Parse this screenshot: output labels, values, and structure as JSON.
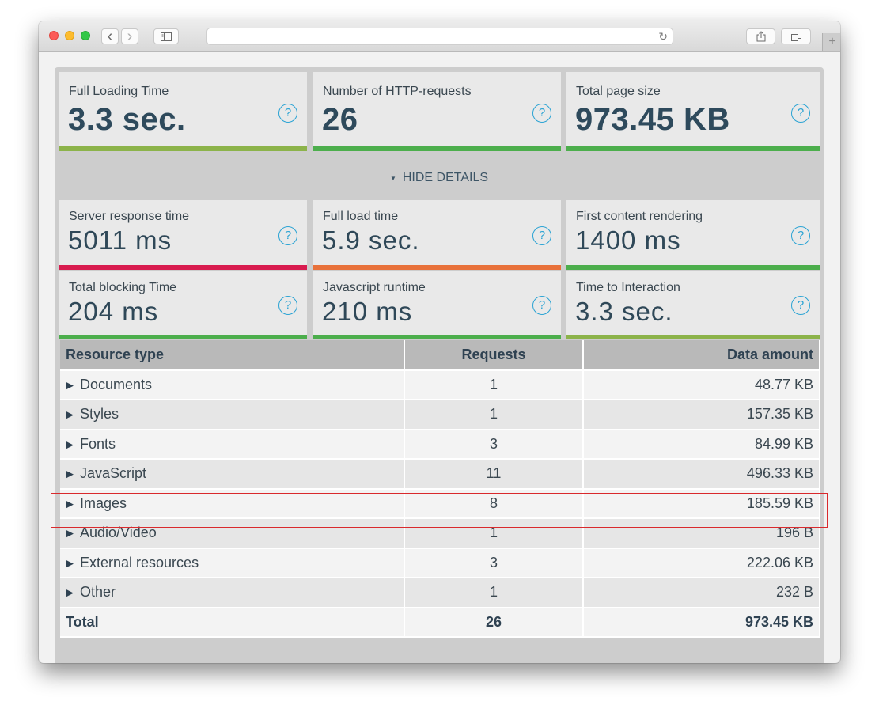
{
  "summary": [
    {
      "label": "Full Loading Time",
      "value": "3.3 sec.",
      "bar_color": "#8cb34a"
    },
    {
      "label": "Number of HTTP-requests",
      "value": "26",
      "bar_color": "#4cae4c"
    },
    {
      "label": "Total page size",
      "value": "973.45 KB",
      "bar_color": "#4cae4c"
    }
  ],
  "help_glyph": "?",
  "toggle": {
    "arrow": "▼",
    "label": "HIDE DETAILS"
  },
  "details": [
    {
      "label": "Server response time",
      "value": "5011 ms",
      "bar_color": "#d81b4f"
    },
    {
      "label": "Full load time",
      "value": "5.9 sec.",
      "bar_color": "#e8713a"
    },
    {
      "label": "First content rendering",
      "value": "1400 ms",
      "bar_color": "#4cae4c"
    },
    {
      "label": "Total blocking Time",
      "value": "204 ms",
      "bar_color": "#4cae4c"
    },
    {
      "label": "Javascript runtime",
      "value": "210 ms",
      "bar_color": "#4cae4c"
    },
    {
      "label": "Time to Interaction",
      "value": "3.3 sec.",
      "bar_color": "#8cb34a"
    }
  ],
  "table": {
    "headers": [
      "Resource type",
      "Requests",
      "Data amount"
    ],
    "rows": [
      {
        "type": "Documents",
        "requests": "1",
        "amount": "48.77 KB"
      },
      {
        "type": "Styles",
        "requests": "1",
        "amount": "157.35 KB"
      },
      {
        "type": "Fonts",
        "requests": "3",
        "amount": "84.99 KB"
      },
      {
        "type": "JavaScript",
        "requests": "11",
        "amount": "496.33 KB"
      },
      {
        "type": "Images",
        "requests": "8",
        "amount": "185.59 KB"
      },
      {
        "type": "Audio/Video",
        "requests": "1",
        "amount": "196 B"
      },
      {
        "type": "External resources",
        "requests": "3",
        "amount": "222.06 KB"
      },
      {
        "type": "Other",
        "requests": "1",
        "amount": "232 B"
      }
    ],
    "total": {
      "type": "Total",
      "requests": "26",
      "amount": "973.45 KB"
    },
    "expand_glyph": "▶",
    "highlighted_row": "Images"
  },
  "browser": {
    "back_glyph": "‹",
    "forward_glyph": "›",
    "reload_glyph": "↻",
    "newtab_glyph": "+",
    "icons": [
      "sidebar-icon",
      "share-icon",
      "tabs-icon"
    ]
  }
}
